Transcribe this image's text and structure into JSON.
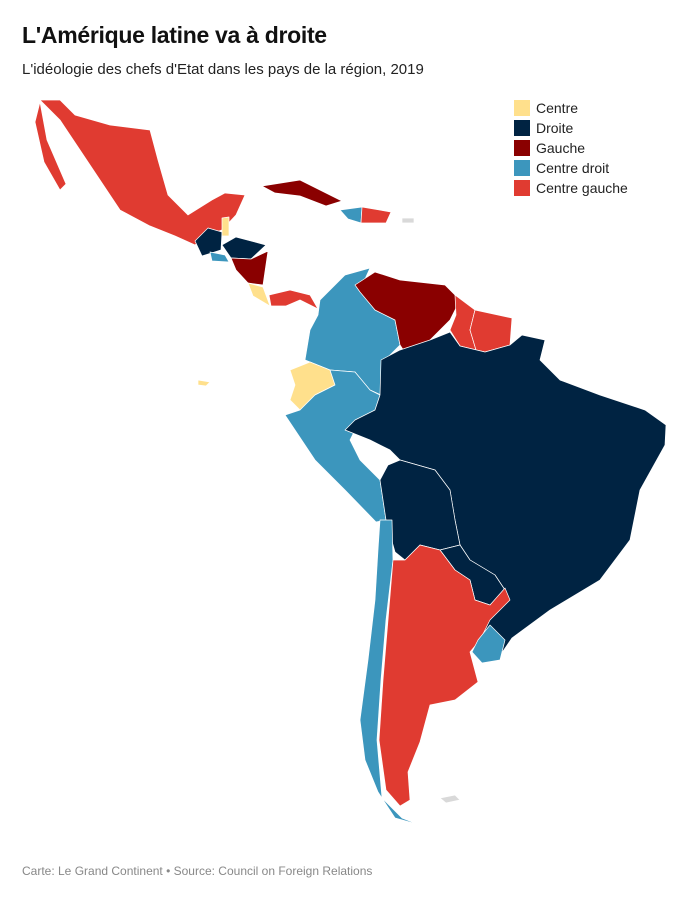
{
  "header": {
    "title": "L'Amérique latine va à droite",
    "subtitle": "L'idéologie des chefs d'Etat dans les pays de la région, 2019"
  },
  "legend": [
    {
      "label": "Centre",
      "color": "#ffe08c"
    },
    {
      "label": "Droite",
      "color": "#002342"
    },
    {
      "label": "Gauche",
      "color": "#8a0000"
    },
    {
      "label": "Centre droit",
      "color": "#3c96bd"
    },
    {
      "label": "Centre gauche",
      "color": "#e03b31"
    }
  ],
  "no_data_color": "#d9d9d9",
  "footer": "Carte: Le Grand Continent • Source: Council on Foreign Relations"
}
